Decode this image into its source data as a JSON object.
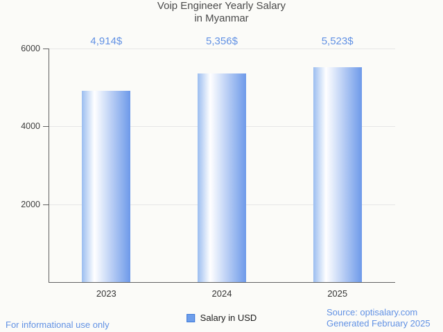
{
  "title": {
    "line1": "Voip Engineer Yearly Salary",
    "line2": "in Myanmar"
  },
  "chart_data": {
    "type": "bar",
    "categories": [
      "2023",
      "2024",
      "2025"
    ],
    "values": [
      4914,
      5356,
      5523
    ],
    "value_labels": [
      "4,914$",
      "5,356$",
      "5,523$"
    ],
    "title": "Voip Engineer Yearly Salary in Myanmar",
    "xlabel": "",
    "ylabel": "",
    "ylim": [
      0,
      6000
    ],
    "yticks": [
      2000,
      4000,
      6000
    ],
    "grid": true,
    "legend_position": "bottom",
    "series": [
      {
        "name": "Salary in USD",
        "values": [
          4914,
          5356,
          5523
        ]
      }
    ]
  },
  "legend": {
    "label": "Salary in USD",
    "swatch_color": "#6d9eeb"
  },
  "footer": {
    "left": "For informational use only",
    "source": "Source: optisalary.com",
    "generated": "Generated February 2025"
  },
  "colors": {
    "background": "#fbfbf8",
    "title_text": "#4a4a4a",
    "axis_text": "#3d3d3d",
    "value_label_text": "#6191e4",
    "footer_text": "#6191e4",
    "gridline": "#e6e6e6",
    "axis_line": "#616161",
    "bar_gradient_left": "#9bbdf0",
    "bar_gradient_mid": "#ffffff",
    "bar_gradient_right": "#6d99e9",
    "legend_swatch": "#6d9eeb"
  }
}
